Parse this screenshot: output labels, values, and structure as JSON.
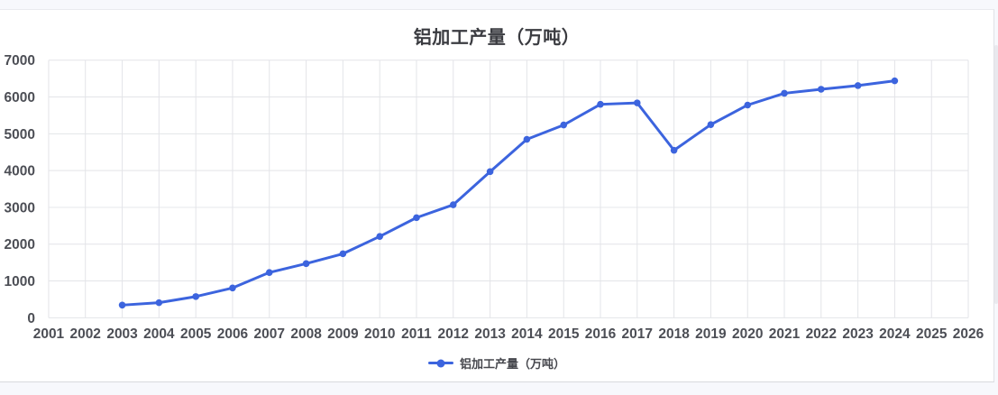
{
  "page": {
    "background_color": "#f7f8fc"
  },
  "card": {
    "background_color": "#ffffff"
  },
  "colors": {
    "series_blue": "#3c64de",
    "grid_line": "#e3e4e8",
    "title_text": "#3a3b40",
    "axis_text": "#4c4e55",
    "legend_text": "#46474d"
  },
  "chart_data": {
    "type": "line",
    "title": "铝加工产量（万吨）",
    "legend_label": "铝加工产量（万吨）",
    "legend_position": "bottom",
    "grid": true,
    "xlabel": "",
    "ylabel": "",
    "categories": [
      "2001",
      "2002",
      "2003",
      "2004",
      "2005",
      "2006",
      "2007",
      "2008",
      "2009",
      "2010",
      "2011",
      "2012",
      "2013",
      "2014",
      "2015",
      "2016",
      "2017",
      "2018",
      "2019",
      "2020",
      "2021",
      "2022",
      "2023",
      "2024",
      "2025",
      "2026"
    ],
    "y_ticks": [
      0,
      1000,
      2000,
      3000,
      4000,
      5000,
      6000,
      7000
    ],
    "ylim": [
      0,
      7000
    ],
    "series": [
      {
        "name": "铝加工产量（万吨）",
        "color": "#3c64de",
        "x": [
          2003,
          2004,
          2005,
          2006,
          2007,
          2008,
          2009,
          2010,
          2011,
          2012,
          2013,
          2014,
          2015,
          2016,
          2017,
          2018,
          2019,
          2020,
          2021,
          2022,
          2023,
          2024
        ],
        "values": [
          345,
          410,
          575,
          810,
          1230,
          1470,
          1740,
          2210,
          2720,
          3070,
          3970,
          4850,
          5240,
          5800,
          5840,
          4550,
          5250,
          5780,
          6100,
          6210,
          6310,
          6440
        ]
      }
    ]
  }
}
